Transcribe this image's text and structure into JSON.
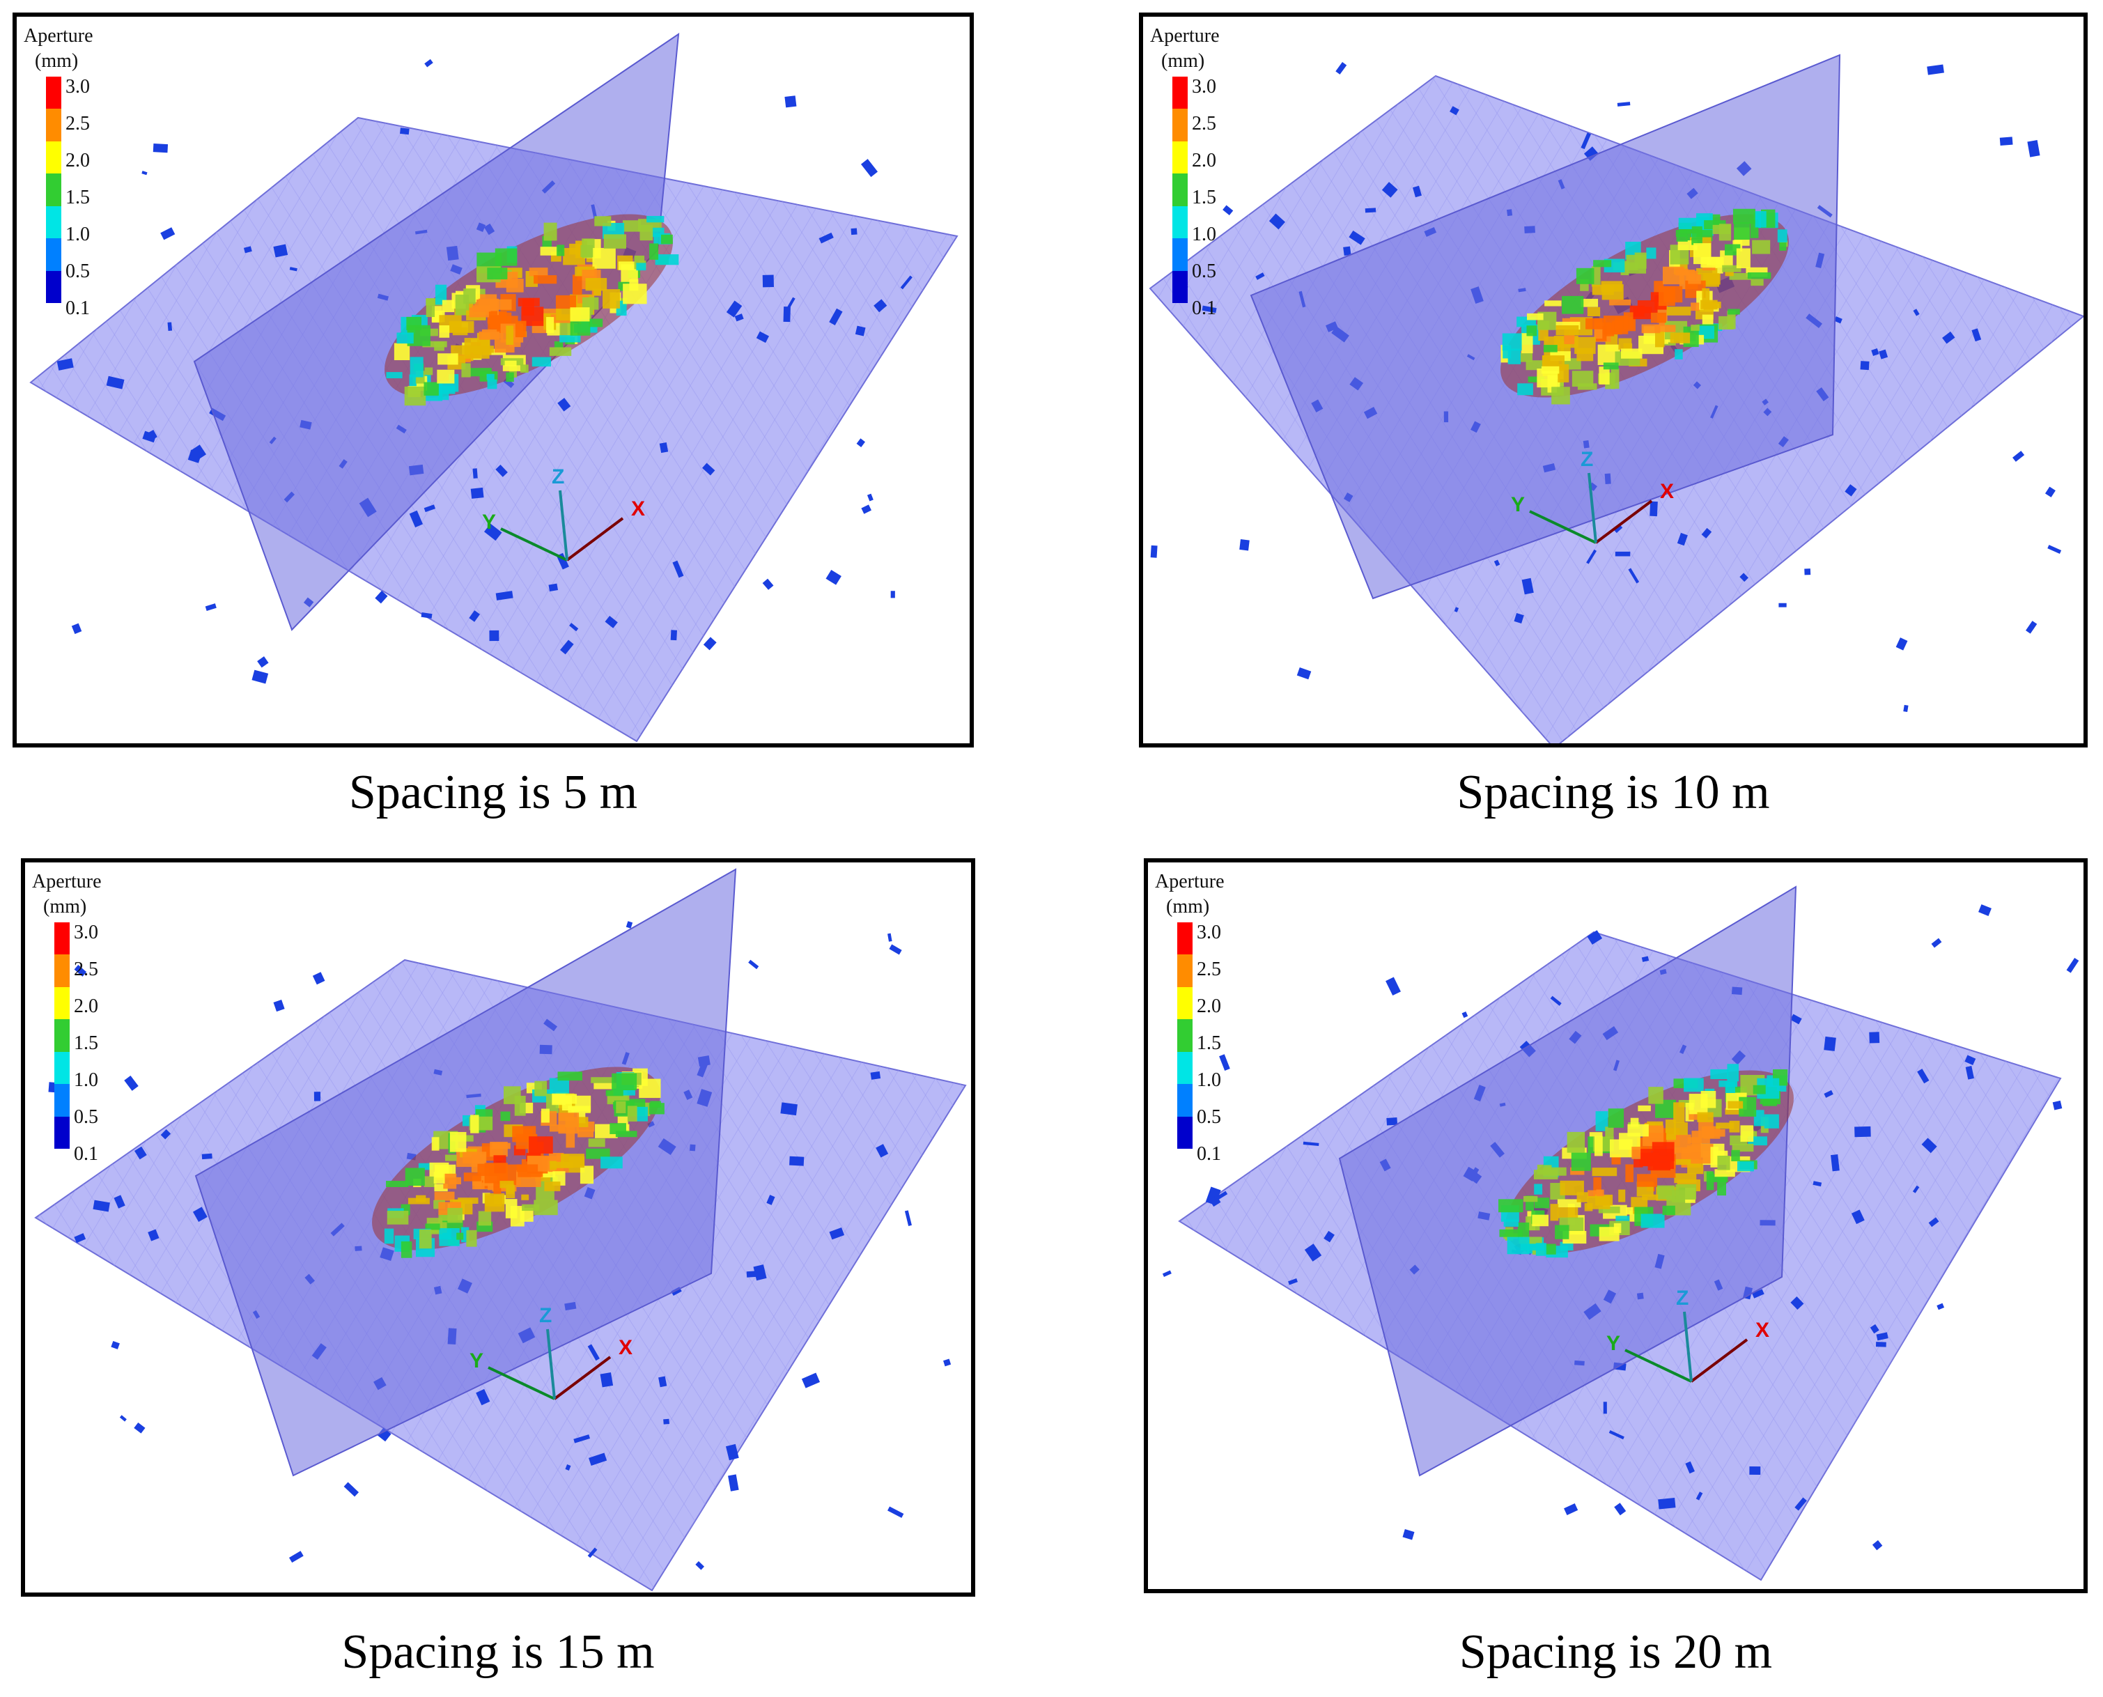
{
  "figure": {
    "legend": {
      "title": "Aperture",
      "unit": "(mm)",
      "ticks": [
        "3.0",
        "2.5",
        "2.0",
        "1.5",
        "1.0",
        "0.5",
        "0.1"
      ],
      "colors": [
        "#ff0000",
        "#ff8c00",
        "#ffff00",
        "#32cd32",
        "#00e5e5",
        "#0080ff",
        "#0000cc"
      ]
    },
    "axes": {
      "x": "X",
      "y": "Y",
      "z": "Z"
    },
    "panels": [
      {
        "caption": "Spacing is 5 m"
      },
      {
        "caption": "Spacing is 10 m"
      },
      {
        "caption": "Spacing is 15 m"
      },
      {
        "caption": "Spacing is 20 m"
      }
    ]
  },
  "colors": {
    "plane_fill": "#8c8cf2",
    "plane_stroke": "#6f6fd9",
    "mesh": "#9a9af0",
    "fracture_blue": "#1a3fe0",
    "frame": "#000000"
  }
}
